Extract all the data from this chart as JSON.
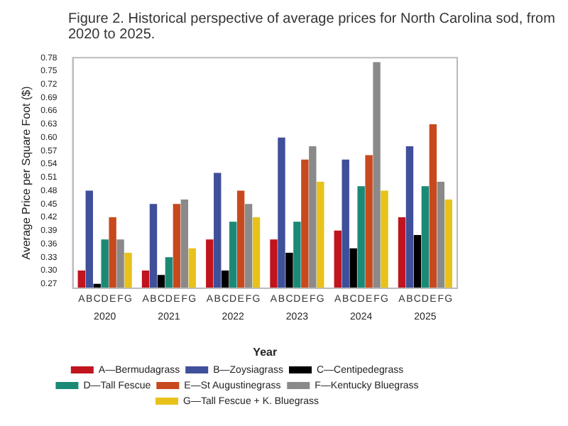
{
  "chart_data": {
    "type": "bar",
    "title": "Figure 2. Historical perspective of average prices for North Carolina sod, from 2020 to 2025.",
    "xlabel": "Year",
    "ylabel": "Average Price per Square Foot ($)",
    "categories": [
      "2020",
      "2021",
      "2022",
      "2023",
      "2024",
      "2025"
    ],
    "series": [
      {
        "name": "A—Bermudagrass",
        "color": "#c0141e",
        "values": [
          0.3,
          0.3,
          0.37,
          0.37,
          0.39,
          0.42
        ]
      },
      {
        "name": "B—Zoysiagrass",
        "color": "#3f4f9a",
        "values": [
          0.48,
          0.45,
          0.52,
          0.6,
          0.55,
          0.58
        ]
      },
      {
        "name": "C—Centipedegrass",
        "color": "#000000",
        "values": [
          0.27,
          0.29,
          0.3,
          0.34,
          0.35,
          0.38
        ]
      },
      {
        "name": "D—Tall Fescue",
        "color": "#1a8a76",
        "values": [
          0.37,
          0.33,
          0.41,
          0.41,
          0.49,
          0.49
        ]
      },
      {
        "name": "E—St Augustinegrass",
        "color": "#c8491e",
        "values": [
          0.42,
          0.45,
          0.48,
          0.55,
          0.56,
          0.63
        ]
      },
      {
        "name": "F—Kentucky Bluegrass",
        "color": "#8a8a8a",
        "values": [
          0.37,
          0.46,
          0.45,
          0.58,
          0.77,
          0.5
        ]
      },
      {
        "name": "G—Tall Fescue + K. Bluegrass",
        "color": "#e8c21a",
        "values": [
          0.34,
          0.35,
          0.42,
          0.5,
          0.48,
          0.46
        ]
      }
    ],
    "annotations": [
      {
        "text": "A",
        "x": "2020"
      },
      {
        "text": "B",
        "x": "2020"
      },
      {
        "text": "C",
        "x": "2020"
      },
      {
        "text": "D",
        "x": "2020"
      },
      {
        "text": "E",
        "x": "2020"
      },
      {
        "text": "F",
        "x": "2020"
      },
      {
        "text": "G",
        "x": "2020"
      },
      {
        "text": "A",
        "x": "2021"
      },
      {
        "text": "B",
        "x": "2021"
      },
      {
        "text": "C",
        "x": "2021"
      },
      {
        "text": "D",
        "x": "2021"
      },
      {
        "text": "E",
        "x": "2021"
      },
      {
        "text": "F",
        "x": "2021"
      },
      {
        "text": "G",
        "x": "2021"
      },
      {
        "text": "A",
        "x": "2022"
      },
      {
        "text": "B",
        "x": "2022"
      },
      {
        "text": "C",
        "x": "2022"
      },
      {
        "text": "D",
        "x": "2022"
      },
      {
        "text": "E",
        "x": "2022"
      },
      {
        "text": "F",
        "x": "2022"
      },
      {
        "text": "G",
        "x": "2022"
      },
      {
        "text": "A",
        "x": "2023"
      },
      {
        "text": "B",
        "x": "2023"
      },
      {
        "text": "C",
        "x": "2023"
      },
      {
        "text": "D",
        "x": "2023"
      },
      {
        "text": "E",
        "x": "2023"
      },
      {
        "text": "F",
        "x": "2023"
      },
      {
        "text": "G",
        "x": "2023"
      },
      {
        "text": "A",
        "x": "2024"
      },
      {
        "text": "B",
        "x": "2024"
      },
      {
        "text": "C",
        "x": "2024"
      },
      {
        "text": "D",
        "x": "2024"
      },
      {
        "text": "E",
        "x": "2024"
      },
      {
        "text": "F",
        "x": "2024"
      },
      {
        "text": "G",
        "x": "2024"
      },
      {
        "text": "A",
        "x": "2025"
      },
      {
        "text": "B",
        "x": "2025"
      },
      {
        "text": "C",
        "x": "2025"
      },
      {
        "text": "D",
        "x": "2025"
      },
      {
        "text": "E",
        "x": "2025"
      },
      {
        "text": "F",
        "x": "2025"
      },
      {
        "text": "G",
        "x": "2025"
      }
    ],
    "ylim": [
      0.26,
      0.78
    ],
    "yticks": [
      0.27,
      {
        "value": 0.3,
        "label": "0.30"
      },
      0.33,
      0.36,
      0.39,
      0.42,
      0.45,
      0.48,
      0.51,
      0.54,
      0.57,
      {
        "value": 0.6,
        "label": "0.60"
      },
      0.63,
      0.66,
      0.69,
      0.72,
      0.75,
      0.78
    ],
    "grid": false,
    "legend": "bottom"
  }
}
